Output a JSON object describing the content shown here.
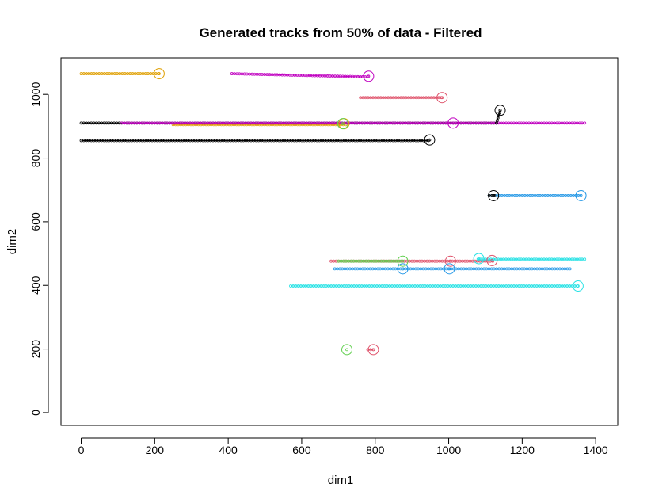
{
  "chart_data": {
    "type": "scatter",
    "title": "Generated tracks from 50% of data - Filtered",
    "xlabel": "dim1",
    "ylabel": "dim2",
    "xlim": [
      -55,
      1460
    ],
    "ylim": [
      -40,
      1115
    ],
    "xticks": [
      0,
      200,
      400,
      600,
      800,
      1000,
      1200,
      1400
    ],
    "yticks": [
      0,
      200,
      400,
      600,
      800,
      1000
    ],
    "xtick_labels": [
      "0",
      "200",
      "400",
      "600",
      "800",
      "1000",
      "1200",
      "1400"
    ],
    "ytick_labels": [
      "0",
      "200",
      "400",
      "600",
      "800",
      "1000"
    ],
    "grid": false,
    "tracks": [
      {
        "color": "#DF9F00",
        "x_start": 0,
        "x_end": 210,
        "y_start": 1065,
        "y_end": 1065
      },
      {
        "color": "#C000C0",
        "x_start": 410,
        "x_end": 780,
        "y_start": 1065,
        "y_end": 1055
      },
      {
        "color": "#DF536B",
        "x_start": 760,
        "x_end": 980,
        "y_start": 990,
        "y_end": 990
      },
      {
        "color": "#000000",
        "x_start": 0,
        "x_end": 1130,
        "y_start": 910,
        "y_end": 910
      },
      {
        "color": "#DF9F00",
        "x_start": 250,
        "x_end": 720,
        "y_start": 905,
        "y_end": 905
      },
      {
        "color": "#C000C0",
        "x_start": 110,
        "x_end": 1370,
        "y_start": 910,
        "y_end": 910
      },
      {
        "color": "#000000",
        "x_start": 1130,
        "x_end": 1140,
        "y_start": 910,
        "y_end": 950
      },
      {
        "color": "#000000",
        "x_start": 0,
        "x_end": 945,
        "y_start": 855,
        "y_end": 855
      },
      {
        "color": "#2297E6",
        "x_start": 1110,
        "x_end": 1360,
        "y_start": 682,
        "y_end": 682
      },
      {
        "color": "#000000",
        "x_start": 1110,
        "x_end": 1125,
        "y_start": 682,
        "y_end": 682
      },
      {
        "color": "#DF536B",
        "x_start": 680,
        "x_end": 1120,
        "y_start": 476,
        "y_end": 476
      },
      {
        "color": "#61D04F",
        "x_start": 700,
        "x_end": 870,
        "y_start": 476,
        "y_end": 476
      },
      {
        "color": "#28E2E5",
        "x_start": 1080,
        "x_end": 1370,
        "y_start": 482,
        "y_end": 482
      },
      {
        "color": "#2297E6",
        "x_start": 690,
        "x_end": 1330,
        "y_start": 452,
        "y_end": 452
      },
      {
        "color": "#28E2E5",
        "x_start": 570,
        "x_end": 1350,
        "y_start": 398,
        "y_end": 398
      },
      {
        "color": "#DF536B",
        "x_start": 780,
        "x_end": 795,
        "y_start": 198,
        "y_end": 198
      }
    ],
    "endpoints": [
      {
        "color": "#DF9F00",
        "x": 212,
        "y": 1065
      },
      {
        "color": "#C000C0",
        "x": 782,
        "y": 1057
      },
      {
        "color": "#DF536B",
        "x": 982,
        "y": 990
      },
      {
        "color": "#000000",
        "x": 1140,
        "y": 950
      },
      {
        "color": "#C000C0",
        "x": 1012,
        "y": 910
      },
      {
        "color": "#DF9F00",
        "x": 715,
        "y": 908
      },
      {
        "color": "#61D04F",
        "x": 712,
        "y": 908
      },
      {
        "color": "#000000",
        "x": 948,
        "y": 857
      },
      {
        "color": "#000000",
        "x": 1122,
        "y": 682
      },
      {
        "color": "#2297E6",
        "x": 1360,
        "y": 682
      },
      {
        "color": "#61D04F",
        "x": 875,
        "y": 476
      },
      {
        "color": "#DF536B",
        "x": 1005,
        "y": 476
      },
      {
        "color": "#28E2E5",
        "x": 1082,
        "y": 484
      },
      {
        "color": "#DF536B",
        "x": 1118,
        "y": 478
      },
      {
        "color": "#2297E6",
        "x": 875,
        "y": 452
      },
      {
        "color": "#2297E6",
        "x": 1002,
        "y": 452
      },
      {
        "color": "#28E2E5",
        "x": 1352,
        "y": 398
      },
      {
        "color": "#61D04F",
        "x": 723,
        "y": 198
      },
      {
        "color": "#DF536B",
        "x": 795,
        "y": 198
      }
    ]
  }
}
